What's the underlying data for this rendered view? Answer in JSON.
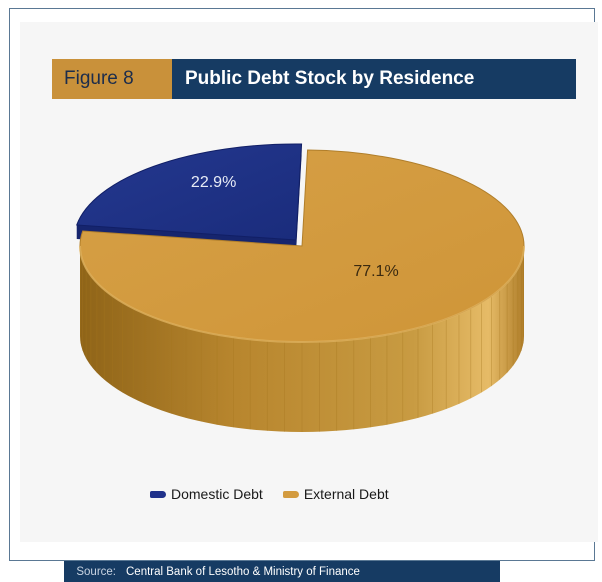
{
  "header": {
    "figure_label": "Figure 8",
    "title": "Public Debt Stock by Residence"
  },
  "chart_data": {
    "type": "pie",
    "title": "Public Debt Stock by Residence",
    "style": "3D",
    "slices": [
      {
        "label": "Domestic Debt",
        "value": 22.9,
        "value_label": "22.9%",
        "color": "#1f318a"
      },
      {
        "label": "External Debt",
        "value": 77.1,
        "value_label": "77.1%",
        "color": "#d39b3f"
      }
    ],
    "legend_position": "bottom"
  },
  "legend": [
    {
      "label": "Domestic Debt",
      "color": "#1f318a"
    },
    {
      "label": "External Debt",
      "color": "#d39b3f"
    }
  ],
  "source": {
    "label": "Source:",
    "text": "Central Bank of Lesotho & Ministry of Finance"
  }
}
